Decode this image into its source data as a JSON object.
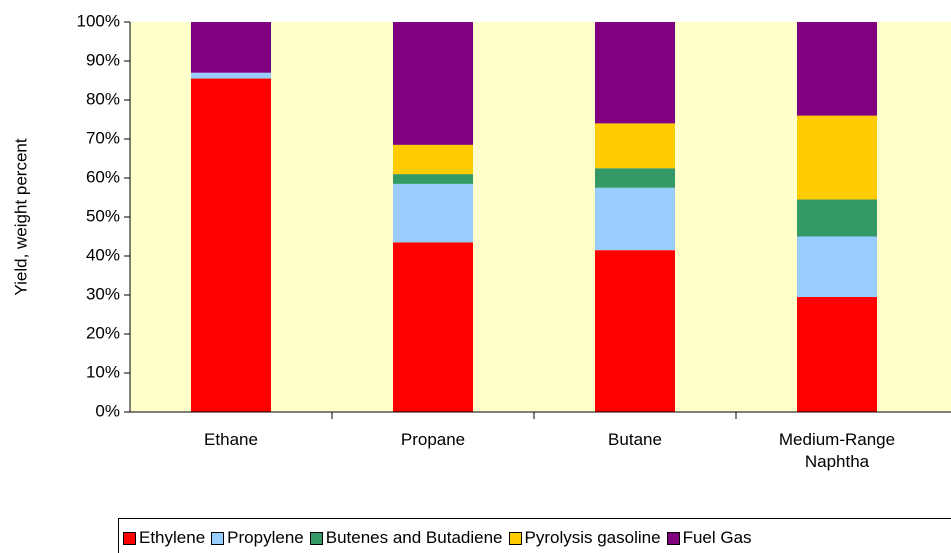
{
  "chart_data": {
    "type": "stacked-bar",
    "ylabel": "Yield, weight percent",
    "categories": [
      "Ethane",
      "Propane",
      "Butane",
      "Medium-Range Naphtha"
    ],
    "series": [
      {
        "name": "Ethylene",
        "color": "#ff0000",
        "values": [
          85.5,
          43.5,
          41.5,
          29.5
        ]
      },
      {
        "name": "Propylene",
        "color": "#99ccff",
        "values": [
          1.5,
          15,
          16,
          15.5
        ]
      },
      {
        "name": "Butenes and Butadiene",
        "color": "#339966",
        "values": [
          0,
          2.5,
          5,
          9.5
        ]
      },
      {
        "name": "Pyrolysis gasoline",
        "color": "#ffcc00",
        "values": [
          0,
          7.5,
          11.5,
          21.5
        ]
      },
      {
        "name": "Fuel Gas",
        "color": "#800080",
        "values": [
          13,
          31.5,
          26,
          24
        ]
      }
    ],
    "ylim": [
      0,
      100
    ],
    "yticks": [
      {
        "value": 0,
        "label": "0%"
      },
      {
        "value": 10,
        "label": "10%"
      },
      {
        "value": 20,
        "label": "20%"
      },
      {
        "value": 30,
        "label": "30%"
      },
      {
        "value": 40,
        "label": "40%"
      },
      {
        "value": 50,
        "label": "50%"
      },
      {
        "value": 60,
        "label": "60%"
      },
      {
        "value": 70,
        "label": "70%"
      },
      {
        "value": 80,
        "label": "80%"
      },
      {
        "value": 90,
        "label": "90%"
      },
      {
        "value": 100,
        "label": "100%"
      }
    ],
    "background": "#ffffcc"
  }
}
